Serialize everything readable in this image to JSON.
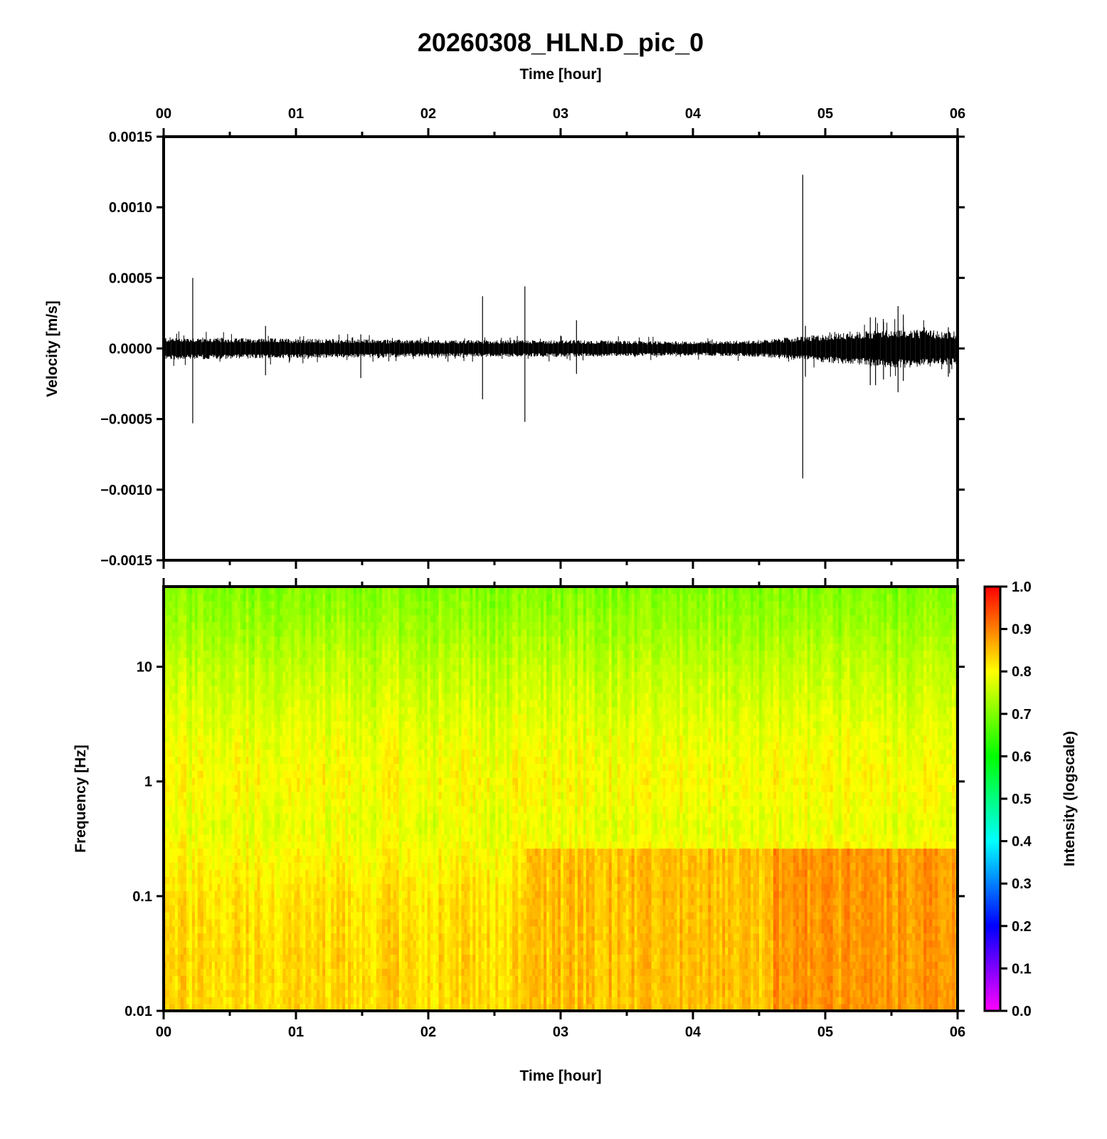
{
  "figure_title": "20260308_HLN.D_pic_0",
  "chart_data": [
    {
      "type": "line",
      "title": "",
      "xlabel": "Time [hour]",
      "ylabel": "Velocity [m/s]",
      "xlim": [
        0,
        6
      ],
      "ylim": [
        -0.0015,
        0.0015
      ],
      "x_tick_labels": [
        "00",
        "01",
        "02",
        "03",
        "04",
        "05",
        "06"
      ],
      "y_tick_values": [
        -0.0015,
        -0.001,
        -0.0005,
        0,
        0.0005,
        0.001,
        0.0015
      ],
      "y_tick_labels": [
        "−0.0015",
        "−0.0010",
        "−0.0005",
        "0.0000",
        "0.0005",
        "0.0010",
        "0.0015"
      ],
      "series": [
        {
          "color": "#000000",
          "noise_band_envelope": {
            "x": [
              0,
              1,
              2,
              3,
              4,
              4.5,
              5,
              5.5,
              6
            ],
            "amplitude": [
              8e-05,
              7e-05,
              6e-05,
              6e-05,
              5e-05,
              6e-05,
              0.0001,
              0.00014,
              0.00012
            ]
          },
          "spikes": [
            {
              "x": 0.22,
              "max": 0.0005,
              "min": -0.00053
            },
            {
              "x": 0.77,
              "max": 0.00016,
              "min": -0.00019
            },
            {
              "x": 1.49,
              "max": 0.0001,
              "min": -0.00021
            },
            {
              "x": 2.41,
              "max": 0.00037,
              "min": -0.00036
            },
            {
              "x": 2.73,
              "max": 0.00044,
              "min": -0.00052
            },
            {
              "x": 3.12,
              "max": 0.0002,
              "min": -0.00018
            },
            {
              "x": 4.83,
              "max": 0.00123,
              "min": -0.00092
            },
            {
              "x": 4.85,
              "max": 0.00016,
              "min": -0.0002
            },
            {
              "x": 5.34,
              "max": 0.00022,
              "min": -0.00026
            },
            {
              "x": 5.38,
              "max": 0.00022,
              "min": -0.00026
            },
            {
              "x": 5.44,
              "max": 0.00019,
              "min": -0.00022
            },
            {
              "x": 5.55,
              "max": 0.0003,
              "min": -0.00031
            },
            {
              "x": 5.59,
              "max": 0.00024,
              "min": -0.00023
            },
            {
              "x": 5.93,
              "max": 0.00015,
              "min": -0.0002
            }
          ]
        }
      ]
    },
    {
      "type": "heatmap",
      "title": "",
      "xlabel": "Time [hour]",
      "ylabel": "Frequency [Hz]",
      "xlim": [
        0,
        6
      ],
      "ylim": [
        0.01,
        50
      ],
      "y_scale": "log",
      "x_tick_labels": [
        "00",
        "01",
        "02",
        "03",
        "04",
        "05",
        "06"
      ],
      "y_tick_values": [
        0.01,
        0.1,
        1,
        10
      ],
      "y_tick_labels": [
        "0.01",
        "0.1",
        "1",
        "10"
      ],
      "colorbar": {
        "label": "Intensity (logscale)",
        "range": [
          0,
          1
        ],
        "tick_values": [
          0,
          0.1,
          0.2,
          0.3,
          0.4,
          0.5,
          0.6,
          0.7,
          0.8,
          0.9,
          1.0
        ],
        "tick_labels": [
          "0.0",
          "0.1",
          "0.2",
          "0.3",
          "0.4",
          "0.5",
          "0.6",
          "0.7",
          "0.8",
          "0.9",
          "1.0"
        ],
        "colormap": [
          "#ff00ff",
          "#0000ff",
          "#00ffff",
          "#00ff00",
          "#ffff00",
          "#ff0000"
        ]
      },
      "intensity_profile": {
        "frequency_hz": [
          0.01,
          0.03,
          0.1,
          0.25,
          0.4,
          1,
          3,
          10,
          25,
          50
        ],
        "intensity": [
          0.83,
          0.83,
          0.82,
          0.8,
          0.78,
          0.8,
          0.78,
          0.75,
          0.72,
          0.7
        ]
      },
      "elevated_intensity_regions": [
        {
          "time_hours": [
            2.75,
            4.6
          ],
          "frequency_hz": [
            0.01,
            0.25
          ],
          "intensity": 0.85
        },
        {
          "time_hours": [
            4.6,
            6.0
          ],
          "frequency_hz": [
            0.01,
            0.25
          ],
          "intensity": 0.88
        }
      ]
    }
  ]
}
